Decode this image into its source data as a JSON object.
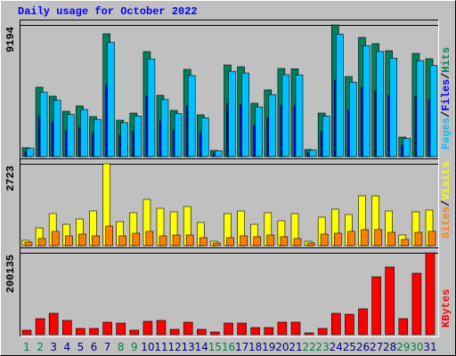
{
  "chart_data": [
    {
      "type": "bar",
      "title": "Daily usage for October 2022",
      "ylim": [
        0,
        9194
      ],
      "yticks": [
        9194
      ],
      "legend_separator": "/",
      "series": [
        {
          "name": "Hits",
          "color": "#00805c",
          "values": [
            621,
            4845,
            4224,
            3168,
            3541,
            2795,
            8573,
            2547,
            3044,
            7330,
            4286,
            3230,
            6088,
            2920,
            435,
            6399,
            6274,
            3727,
            4659,
            6150,
            6130,
            497,
            3044,
            9194,
            5591,
            8324,
            7889,
            7392,
            1367,
            7206,
            6833
          ]
        },
        {
          "name": "Files",
          "color": "#0000ff",
          "values": [
            360,
            2810,
            2450,
            1837,
            2054,
            1621,
            4972,
            1477,
            1766,
            4251,
            2486,
            1873,
            3531,
            1694,
            252,
            3711,
            3639,
            2162,
            2702,
            3567,
            3555,
            288,
            1766,
            5333,
            3243,
            4828,
            4576,
            4287,
            793,
            4179,
            3963
          ]
        },
        {
          "name": "Pages",
          "color": "#00c0ff",
          "values": [
            578,
            4506,
            3928,
            2946,
            3293,
            2599,
            7973,
            2369,
            2831,
            6817,
            3986,
            3004,
            5662,
            2716,
            405,
            5951,
            5835,
            3466,
            4333,
            5720,
            5701,
            462,
            2831,
            8550,
            5200,
            7741,
            7337,
            6875,
            1271,
            6702,
            6355
          ]
        }
      ]
    },
    {
      "type": "bar",
      "ylim": [
        0,
        2723
      ],
      "yticks": [
        2723
      ],
      "legend_separator": "/",
      "series": [
        {
          "name": "Visits",
          "color": "#ffff00",
          "values": [
            178,
            592,
            1066,
            710,
            888,
            1154,
            2723,
            799,
            1095,
            1539,
            1243,
            1125,
            1302,
            770,
            148,
            1066,
            1154,
            710,
            1095,
            829,
            1066,
            148,
            947,
            1213,
            1036,
            1657,
            1657,
            1154,
            355,
            1125,
            1184
          ]
        },
        {
          "name": "Sites",
          "color": "#ff8000",
          "values": [
            118,
            237,
            474,
            325,
            385,
            325,
            651,
            325,
            414,
            474,
            325,
            355,
            355,
            266,
            89,
            266,
            325,
            296,
            355,
            296,
            237,
            89,
            385,
            414,
            474,
            533,
            533,
            444,
            207,
            444,
            474
          ]
        }
      ]
    },
    {
      "type": "bar",
      "ylim": [
        0,
        200135
      ],
      "yticks": [
        200135
      ],
      "categories": [
        "1",
        "2",
        "3",
        "4",
        "5",
        "6",
        "7",
        "8",
        "9",
        "10",
        "11",
        "12",
        "13",
        "14",
        "15",
        "16",
        "17",
        "18",
        "19",
        "20",
        "21",
        "22",
        "23",
        "24",
        "25",
        "26",
        "27",
        "28",
        "29",
        "30",
        "31"
      ],
      "category_colors": [
        "#008040",
        "#008040",
        "#000080",
        "#000080",
        "#000080",
        "#000080",
        "#000080",
        "#008040",
        "#008040",
        "#000080",
        "#000080",
        "#000080",
        "#000080",
        "#000080",
        "#008040",
        "#008040",
        "#000080",
        "#000080",
        "#000080",
        "#000080",
        "#000080",
        "#008040",
        "#008040",
        "#000080",
        "#000080",
        "#000080",
        "#000080",
        "#000080",
        "#008040",
        "#008040",
        "#000080"
      ],
      "series": [
        {
          "name": "KBytes",
          "color": "#ff0000",
          "values": [
            10877,
            39157,
            52210,
            34805,
            15228,
            15228,
            30455,
            28280,
            10877,
            32630,
            34805,
            13052,
            30455,
            13052,
            6526,
            28280,
            28280,
            17403,
            17403,
            30455,
            30455,
            4351,
            15228,
            52210,
            50034,
            63086,
            141400,
            165330,
            39157,
            150102,
            200135
          ]
        }
      ]
    }
  ]
}
